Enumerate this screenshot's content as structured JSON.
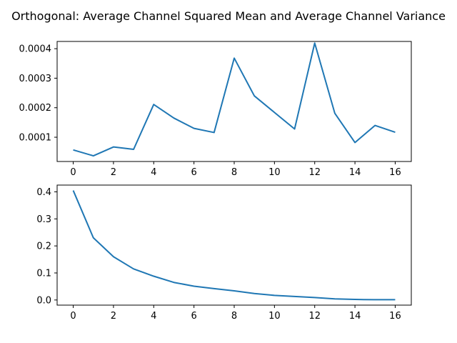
{
  "title": "Orthogonal: Average Channel Squared Mean and Average Channel Variance",
  "colors": {
    "series": "#1f77b4"
  },
  "chart_data": [
    {
      "type": "line",
      "x": [
        0,
        1,
        2,
        3,
        4,
        5,
        6,
        7,
        8,
        9,
        10,
        11,
        12,
        13,
        14,
        15,
        16
      ],
      "series": [
        {
          "values": [
            5.7e-05,
            3.7e-05,
            6.7e-05,
            5.9e-05,
            0.000211,
            0.000165,
            0.00013,
            0.000116,
            0.000368,
            0.00024,
            0.000184,
            0.000128,
            0.000419,
            0.000181,
            8.2e-05,
            0.00014,
            0.000117
          ]
        }
      ],
      "xlim": [
        -0.8,
        16.8
      ],
      "ylim": [
        1.78e-05,
        0.0004245
      ],
      "xticks": [
        0,
        2,
        4,
        6,
        8,
        10,
        12,
        14,
        16
      ],
      "xtick_labels": [
        "0",
        "2",
        "4",
        "6",
        "8",
        "10",
        "12",
        "14",
        "16"
      ],
      "yticks": [
        0.0001,
        0.0002,
        0.0003,
        0.0004
      ],
      "ytick_labels": [
        "0.0001",
        "0.0002",
        "0.0003",
        "0.0004"
      ],
      "xlabel": "",
      "ylabel": "",
      "grid": false
    },
    {
      "type": "line",
      "x": [
        0,
        1,
        2,
        3,
        4,
        5,
        6,
        7,
        8,
        9,
        10,
        11,
        12,
        13,
        14,
        15,
        16
      ],
      "series": [
        {
          "values": [
            0.405,
            0.23,
            0.16,
            0.115,
            0.088,
            0.065,
            0.051,
            0.042,
            0.034,
            0.024,
            0.017,
            0.013,
            0.009,
            0.004,
            0.002,
            0.001,
            0.001
          ]
        }
      ],
      "xlim": [
        -0.8,
        16.8
      ],
      "ylim": [
        -0.019,
        0.425
      ],
      "xticks": [
        0,
        2,
        4,
        6,
        8,
        10,
        12,
        14,
        16
      ],
      "xtick_labels": [
        "0",
        "2",
        "4",
        "6",
        "8",
        "10",
        "12",
        "14",
        "16"
      ],
      "yticks": [
        0.0,
        0.1,
        0.2,
        0.3,
        0.4
      ],
      "ytick_labels": [
        "0.0",
        "0.1",
        "0.2",
        "0.3",
        "0.4"
      ],
      "xlabel": "",
      "ylabel": "",
      "grid": false
    }
  ]
}
